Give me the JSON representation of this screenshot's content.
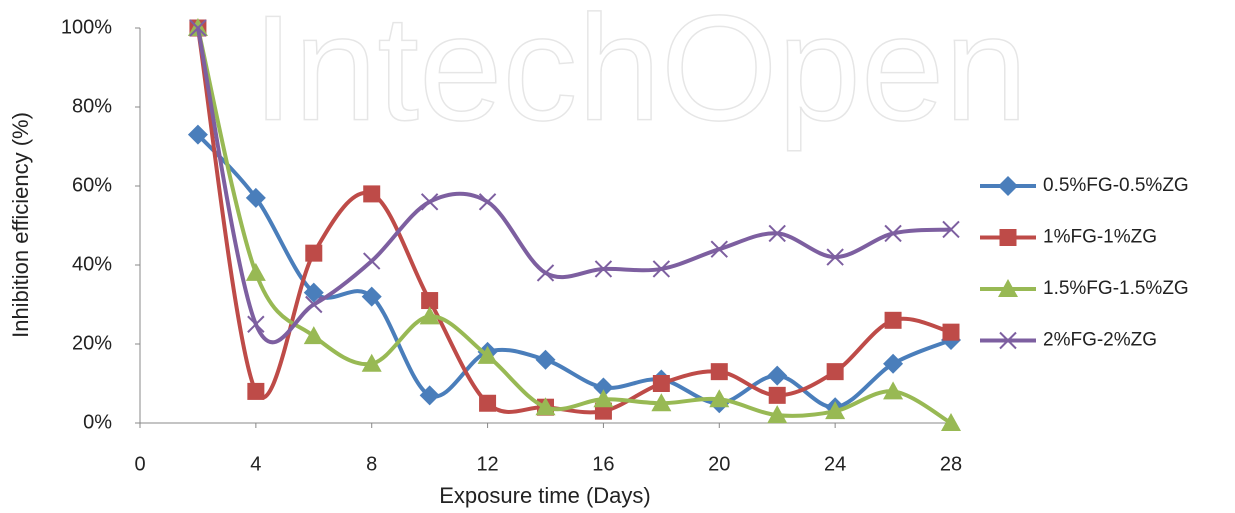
{
  "chart_data": {
    "type": "line",
    "watermark": "IntechOpen",
    "x_label": "Exposure time (Days)",
    "y_label": "Inhibition efficiency (%)",
    "x": [
      2,
      4,
      6,
      8,
      10,
      12,
      14,
      16,
      18,
      20,
      22,
      24,
      26,
      28
    ],
    "series": [
      {
        "name": "0.5%FG-0.5%ZG",
        "color": "#4a7ebb",
        "marker": "diamond",
        "values": [
          73,
          57,
          33,
          32,
          7,
          18,
          16,
          9,
          11,
          5,
          12,
          4,
          15,
          21
        ]
      },
      {
        "name": "1%FG-1%ZG",
        "color": "#be4b48",
        "marker": "square",
        "values": [
          100,
          8,
          43,
          58,
          31,
          5,
          4,
          3,
          10,
          13,
          7,
          13,
          26,
          23
        ]
      },
      {
        "name": "1.5%FG-1.5%ZG",
        "color": "#98b954",
        "marker": "triangle",
        "values": [
          100,
          38,
          22,
          15,
          27,
          17,
          4,
          6,
          5,
          6,
          2,
          3,
          8,
          0
        ]
      },
      {
        "name": "2%FG-2%ZG",
        "color": "#7d5fa0",
        "marker": "x",
        "values": [
          100,
          25,
          30,
          41,
          56,
          56,
          38,
          39,
          39,
          44,
          48,
          42,
          48,
          49
        ]
      }
    ],
    "xlim": [
      0,
      28
    ],
    "xticks": [
      0,
      4,
      8,
      12,
      16,
      20,
      24,
      28
    ],
    "ylim": [
      0,
      100
    ],
    "yticks": [
      {
        "value": 0,
        "label": "0%"
      },
      {
        "value": 20,
        "label": "20%"
      },
      {
        "value": 40,
        "label": "40%"
      },
      {
        "value": 60,
        "label": "60%"
      },
      {
        "value": 80,
        "label": "80%"
      },
      {
        "value": 100,
        "label": "100%"
      }
    ],
    "grid": false,
    "legend": "right",
    "smooth": true
  }
}
